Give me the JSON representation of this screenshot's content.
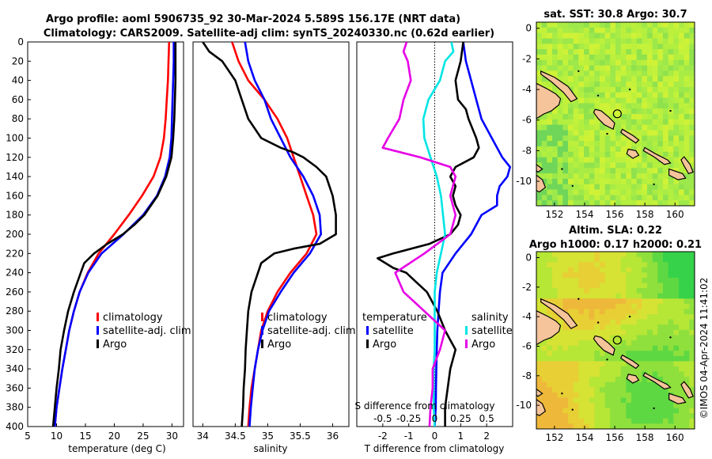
{
  "title_line1": "Argo profile: aoml 5906735_92 30-Mar-2024 5.589S 156.17E (NRT data)",
  "title_line2": "Climatology: CARS2009. Satellite-adj clim: synTS_20240330.nc (0.62d earlier)",
  "copyright": "©IMOS 04-Apr-2024 11:41:02",
  "colors": {
    "climatology": "#ff0000",
    "satellite": "#0000ff",
    "argo": "#000000",
    "sal_sat": "#00e5e5",
    "sal_argo": "#e600e6",
    "land": "#f5c49a"
  },
  "chart_data": [
    {
      "type": "line",
      "name": "temperature",
      "xlabel": "temperature (deg C)",
      "xlim": [
        5,
        32
      ],
      "xticks": [
        5,
        10,
        15,
        20,
        25,
        30
      ],
      "ylim": [
        0,
        400
      ],
      "yticks": [
        0,
        20,
        40,
        60,
        80,
        100,
        120,
        140,
        160,
        180,
        200,
        220,
        240,
        260,
        280,
        300,
        320,
        340,
        360,
        380,
        400
      ],
      "legend": [
        "climatology",
        "satellite-adj. clim",
        "Argo"
      ],
      "series": [
        {
          "name": "climatology",
          "color": "#ff0000",
          "depth": [
            0,
            20,
            40,
            60,
            80,
            100,
            120,
            140,
            160,
            180,
            200,
            220,
            240,
            260,
            280,
            300,
            320,
            340,
            360,
            380,
            400
          ],
          "values": [
            29.5,
            29.4,
            29.3,
            29.1,
            28.9,
            28.6,
            28.0,
            26.8,
            24.8,
            22.5,
            20.0,
            17.3,
            15.4,
            14.0,
            13.0,
            12.2,
            11.6,
            11.0,
            10.5,
            10.0,
            9.7
          ]
        },
        {
          "name": "satellite-adj. clim",
          "color": "#0000ff",
          "depth": [
            0,
            20,
            40,
            60,
            80,
            100,
            120,
            140,
            160,
            180,
            200,
            220,
            240,
            260,
            280,
            300,
            320,
            340,
            360,
            380,
            400
          ],
          "values": [
            30.3,
            30.3,
            30.2,
            30.1,
            30.0,
            29.9,
            29.6,
            28.8,
            27.4,
            25.0,
            21.6,
            17.8,
            15.5,
            14.0,
            13.0,
            12.2,
            11.6,
            11.0,
            10.5,
            10.0,
            9.7
          ]
        },
        {
          "name": "Argo",
          "color": "#000000",
          "depth": [
            0,
            20,
            40,
            60,
            80,
            100,
            120,
            140,
            160,
            180,
            190,
            200,
            210,
            220,
            230,
            240,
            260,
            280,
            300,
            320,
            340,
            360,
            380,
            400
          ],
          "values": [
            30.6,
            30.6,
            30.6,
            30.5,
            30.4,
            30.2,
            29.9,
            29.0,
            27.5,
            25.2,
            23.5,
            21.5,
            18.8,
            16.5,
            14.8,
            14.2,
            13.0,
            12.0,
            11.3,
            10.7,
            10.4,
            10.0,
            9.7,
            9.4
          ]
        }
      ]
    },
    {
      "type": "line",
      "name": "salinity",
      "xlabel": "salinity",
      "xlim": [
        33.85,
        36.25
      ],
      "xticks": [
        34,
        34.5,
        35,
        35.5,
        36
      ],
      "ylim": [
        0,
        400
      ],
      "legend": [
        "climatology",
        "satellite-adj. clim",
        "Argo"
      ],
      "series": [
        {
          "name": "climatology",
          "color": "#ff0000",
          "depth": [
            0,
            20,
            40,
            60,
            80,
            100,
            120,
            140,
            160,
            180,
            200,
            220,
            240,
            260,
            280,
            300,
            320,
            340,
            360,
            380,
            400
          ],
          "values": [
            34.45,
            34.55,
            34.7,
            34.95,
            35.15,
            35.3,
            35.4,
            35.5,
            35.6,
            35.7,
            35.75,
            35.6,
            35.35,
            35.15,
            35.0,
            34.9,
            34.85,
            34.8,
            34.75,
            34.72,
            34.7
          ]
        },
        {
          "name": "satellite-adj. clim",
          "color": "#0000ff",
          "depth": [
            0,
            20,
            40,
            60,
            80,
            100,
            120,
            140,
            160,
            180,
            200,
            220,
            240,
            260,
            280,
            300,
            320,
            340,
            360,
            380,
            400
          ],
          "values": [
            34.65,
            34.7,
            34.8,
            34.95,
            35.05,
            35.2,
            35.35,
            35.55,
            35.7,
            35.8,
            35.82,
            35.65,
            35.4,
            35.2,
            35.02,
            34.92,
            34.85,
            34.8,
            34.77,
            34.74,
            34.72
          ]
        },
        {
          "name": "Argo",
          "color": "#000000",
          "depth": [
            0,
            10,
            20,
            40,
            60,
            80,
            100,
            110,
            115,
            120,
            130,
            140,
            160,
            180,
            200,
            210,
            215,
            220,
            230,
            240,
            260,
            280,
            300,
            320,
            340,
            360,
            380,
            400
          ],
          "values": [
            34.0,
            34.1,
            34.3,
            34.5,
            34.6,
            34.7,
            34.9,
            35.2,
            35.4,
            35.55,
            35.75,
            35.9,
            36.0,
            36.05,
            36.05,
            35.8,
            35.4,
            35.1,
            34.9,
            34.85,
            34.75,
            34.7,
            34.68,
            34.66,
            34.65,
            34.63,
            34.62,
            34.6
          ]
        }
      ]
    },
    {
      "type": "line",
      "name": "difference",
      "xlabel": "T difference from climatology",
      "xlim": [
        -3,
        3
      ],
      "xticks": [
        -2,
        -1,
        0,
        1,
        2
      ],
      "s_label": "S difference from climatology",
      "s_ticks": [
        "-0.5",
        "-0.25",
        "0",
        "0.25",
        "0.5"
      ],
      "ylim": [
        0,
        400
      ],
      "legend_col1_title": "temperature",
      "legend_col1": [
        "satellite",
        "Argo"
      ],
      "legend_col2_title": "salinity",
      "legend_col2": [
        "satellite",
        "Argo"
      ],
      "series": [
        {
          "name": "temperature satellite",
          "color": "#0000ff",
          "depth": [
            0,
            20,
            40,
            60,
            80,
            100,
            120,
            130,
            140,
            150,
            160,
            170,
            180,
            200,
            220,
            240,
            260,
            280,
            300,
            320,
            340,
            360,
            380,
            400
          ],
          "values": [
            1.1,
            1.2,
            1.4,
            1.6,
            1.8,
            2.2,
            2.6,
            2.9,
            2.8,
            2.5,
            2.4,
            2.4,
            1.8,
            1.4,
            0.8,
            0.3,
            0.2,
            0.15,
            0.1,
            0.08,
            0.06,
            0.05,
            0.04,
            0.0
          ]
        },
        {
          "name": "temperature Argo",
          "color": "#000000",
          "depth": [
            0,
            20,
            40,
            60,
            70,
            80,
            100,
            110,
            120,
            130,
            140,
            150,
            160,
            170,
            180,
            190,
            200,
            210,
            220,
            225,
            230,
            235,
            240,
            250,
            260,
            280,
            300,
            310,
            320,
            340,
            360,
            380,
            400
          ],
          "values": [
            1.1,
            1.0,
            0.8,
            0.9,
            1.2,
            1.3,
            1.6,
            1.7,
            1.5,
            0.8,
            0.6,
            0.8,
            0.7,
            0.8,
            1.0,
            0.9,
            0.6,
            -0.2,
            -1.6,
            -2.2,
            -1.9,
            -1.6,
            -1.1,
            -0.7,
            -0.3,
            0.1,
            0.4,
            0.6,
            0.8,
            0.6,
            0.5,
            0.4,
            0.4
          ]
        },
        {
          "name": "salinity satellite",
          "color": "#00e5e5",
          "depth": [
            0,
            10,
            20,
            40,
            60,
            80,
            100,
            120,
            140,
            160,
            180,
            200,
            220,
            240,
            260,
            280,
            300,
            320,
            340,
            360,
            380,
            400
          ],
          "values": [
            0.16,
            0.18,
            0.1,
            0.05,
            -0.06,
            -0.11,
            -0.1,
            -0.04,
            0.02,
            0.06,
            0.08,
            0.1,
            0.06,
            0.02,
            0.0,
            0.0,
            0.0,
            0.0,
            -0.01,
            -0.01,
            -0.01,
            0.0
          ]
        },
        {
          "name": "salinity Argo",
          "color": "#e600e6",
          "depth": [
            0,
            10,
            20,
            40,
            60,
            80,
            100,
            110,
            120,
            130,
            140,
            160,
            180,
            200,
            220,
            240,
            260,
            280,
            300,
            320,
            340,
            360,
            380,
            400
          ],
          "values": [
            -0.27,
            -0.3,
            -0.26,
            -0.23,
            -0.3,
            -0.34,
            -0.45,
            -0.5,
            -0.14,
            0.15,
            0.2,
            0.15,
            0.2,
            0.15,
            -0.1,
            -0.38,
            -0.3,
            -0.1,
            0.1,
            0.05,
            -0.02,
            -0.02,
            -0.04,
            -0.05
          ]
        }
      ]
    },
    {
      "type": "heatmap",
      "name": "sst_map",
      "title": "sat. SST: 30.8 Argo: 30.7",
      "xlim": [
        150.8,
        161.3
      ],
      "ylim": [
        -11.6,
        0.4
      ],
      "xticks": [
        152,
        154,
        156,
        158,
        160
      ],
      "yticks": [
        0,
        -2,
        -4,
        -6,
        -8,
        -10
      ],
      "argo_position": [
        156.17,
        -5.589
      ]
    },
    {
      "type": "heatmap",
      "name": "sla_map",
      "title_line1": "Altim. SLA: 0.22",
      "title_line2": "Argo h1000: 0.17 h2000: 0.21",
      "xlim": [
        150.8,
        161.3
      ],
      "ylim": [
        -11.6,
        0.4
      ],
      "xticks": [
        152,
        154,
        156,
        158,
        160
      ],
      "yticks": [
        0,
        -2,
        -4,
        -6,
        -8,
        -10
      ],
      "argo_position": [
        156.17,
        -5.589
      ]
    }
  ]
}
